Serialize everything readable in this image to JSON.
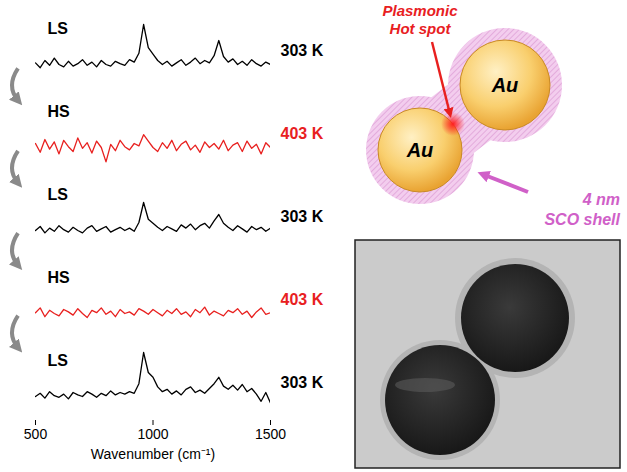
{
  "chart_data": {
    "type": "line",
    "x": [
      500,
      520,
      540,
      560,
      580,
      600,
      620,
      640,
      660,
      680,
      700,
      720,
      740,
      760,
      780,
      800,
      820,
      840,
      860,
      880,
      900,
      920,
      940,
      960,
      980,
      1000,
      1020,
      1040,
      1060,
      1080,
      1100,
      1120,
      1140,
      1160,
      1180,
      1200,
      1220,
      1240,
      1260,
      1280,
      1300,
      1320,
      1340,
      1360,
      1380,
      1400,
      1420,
      1440,
      1460,
      1480,
      1500
    ],
    "series": [
      {
        "name": "303 K",
        "state": "LS",
        "color": "#000000",
        "values": [
          3.2,
          2.6,
          3.5,
          2.9,
          3.8,
          3.0,
          2.7,
          3.4,
          2.8,
          3.1,
          3.6,
          2.9,
          3.3,
          2.7,
          3.5,
          3.0,
          2.8,
          3.4,
          3.1,
          2.9,
          3.6,
          3.3,
          4.4,
          8.0,
          5.1,
          4.3,
          3.5,
          3.0,
          3.4,
          2.8,
          3.2,
          3.6,
          2.9,
          3.3,
          3.8,
          3.1,
          3.5,
          3.2,
          4.1,
          6.0,
          4.0,
          3.3,
          3.7,
          3.0,
          3.4,
          2.9,
          3.6,
          3.1,
          2.8,
          3.3,
          3.0
        ]
      },
      {
        "name": "403 K",
        "state": "HS",
        "color": "#e8201f",
        "values": [
          3.5,
          2.4,
          4.0,
          2.8,
          3.7,
          2.2,
          3.9,
          3.1,
          2.5,
          4.2,
          2.9,
          3.6,
          2.3,
          3.8,
          3.0,
          1.2,
          3.4,
          2.6,
          3.9,
          3.1,
          2.7,
          3.5,
          3.2,
          4.6,
          3.8,
          3.0,
          2.5,
          3.6,
          2.9,
          3.9,
          2.6,
          3.4,
          3.8,
          2.7,
          3.3,
          2.4,
          3.7,
          3.0,
          3.5,
          2.8,
          3.9,
          2.6,
          3.3,
          3.6,
          2.5,
          3.8,
          2.9,
          3.4,
          2.2,
          3.6,
          3.0
        ]
      },
      {
        "name": "303 K",
        "state": "LS",
        "color": "#000000",
        "values": [
          3.0,
          3.5,
          2.7,
          3.3,
          2.9,
          3.6,
          3.1,
          2.8,
          3.4,
          3.0,
          2.7,
          3.3,
          3.6,
          2.9,
          3.2,
          3.5,
          2.8,
          3.1,
          3.4,
          3.0,
          3.3,
          2.9,
          4.0,
          6.5,
          4.4,
          3.9,
          3.4,
          3.0,
          3.5,
          3.2,
          2.9,
          3.7,
          3.3,
          3.8,
          3.1,
          3.6,
          3.9,
          3.3,
          4.2,
          5.0,
          3.9,
          3.4,
          3.0,
          3.6,
          3.2,
          2.8,
          3.5,
          3.1,
          3.4,
          2.9,
          3.3
        ]
      },
      {
        "name": "403 K",
        "state": "HS",
        "color": "#e8201f",
        "values": [
          3.1,
          3.7,
          2.6,
          3.4,
          3.0,
          2.7,
          3.5,
          3.2,
          2.8,
          3.6,
          3.0,
          2.5,
          3.4,
          3.1,
          3.7,
          2.9,
          3.3,
          2.6,
          3.5,
          3.0,
          3.2,
          2.8,
          3.6,
          3.3,
          2.9,
          3.5,
          3.1,
          2.7,
          3.4,
          3.0,
          3.6,
          2.9,
          3.2,
          2.6,
          3.5,
          3.1,
          3.8,
          2.8,
          3.3,
          3.0,
          2.7,
          3.4,
          3.1,
          3.6,
          2.9,
          3.3,
          2.5,
          3.2,
          3.7,
          2.9,
          3.1
        ]
      },
      {
        "name": "303 K",
        "state": "LS",
        "color": "#000000",
        "values": [
          3.0,
          3.4,
          2.8,
          3.6,
          3.1,
          2.9,
          3.3,
          2.7,
          3.5,
          3.2,
          3.0,
          3.6,
          3.3,
          2.9,
          3.4,
          3.1,
          3.7,
          3.2,
          3.5,
          3.3,
          3.6,
          3.4,
          4.6,
          8.5,
          6.0,
          5.4,
          4.2,
          3.6,
          3.9,
          3.3,
          3.7,
          3.2,
          3.9,
          4.2,
          3.5,
          3.8,
          3.4,
          4.0,
          4.6,
          5.4,
          4.3,
          3.9,
          4.4,
          3.8,
          4.5,
          3.6,
          4.0,
          3.3,
          2.4,
          3.5,
          2.2
        ]
      }
    ],
    "xlabel": "Wavenumber (cm⁻¹)",
    "xlim": [
      500,
      1500
    ],
    "xticks": [
      500,
      1000,
      1500
    ],
    "ylim": [
      0,
      10
    ],
    "tick_labels": "x"
  },
  "diagram": {
    "hot_spot_label": [
      "Plasmonic",
      "Hot spot"
    ],
    "particles": [
      "Au",
      "Au"
    ],
    "shell_label": [
      "4 nm",
      "SCO shell"
    ]
  }
}
